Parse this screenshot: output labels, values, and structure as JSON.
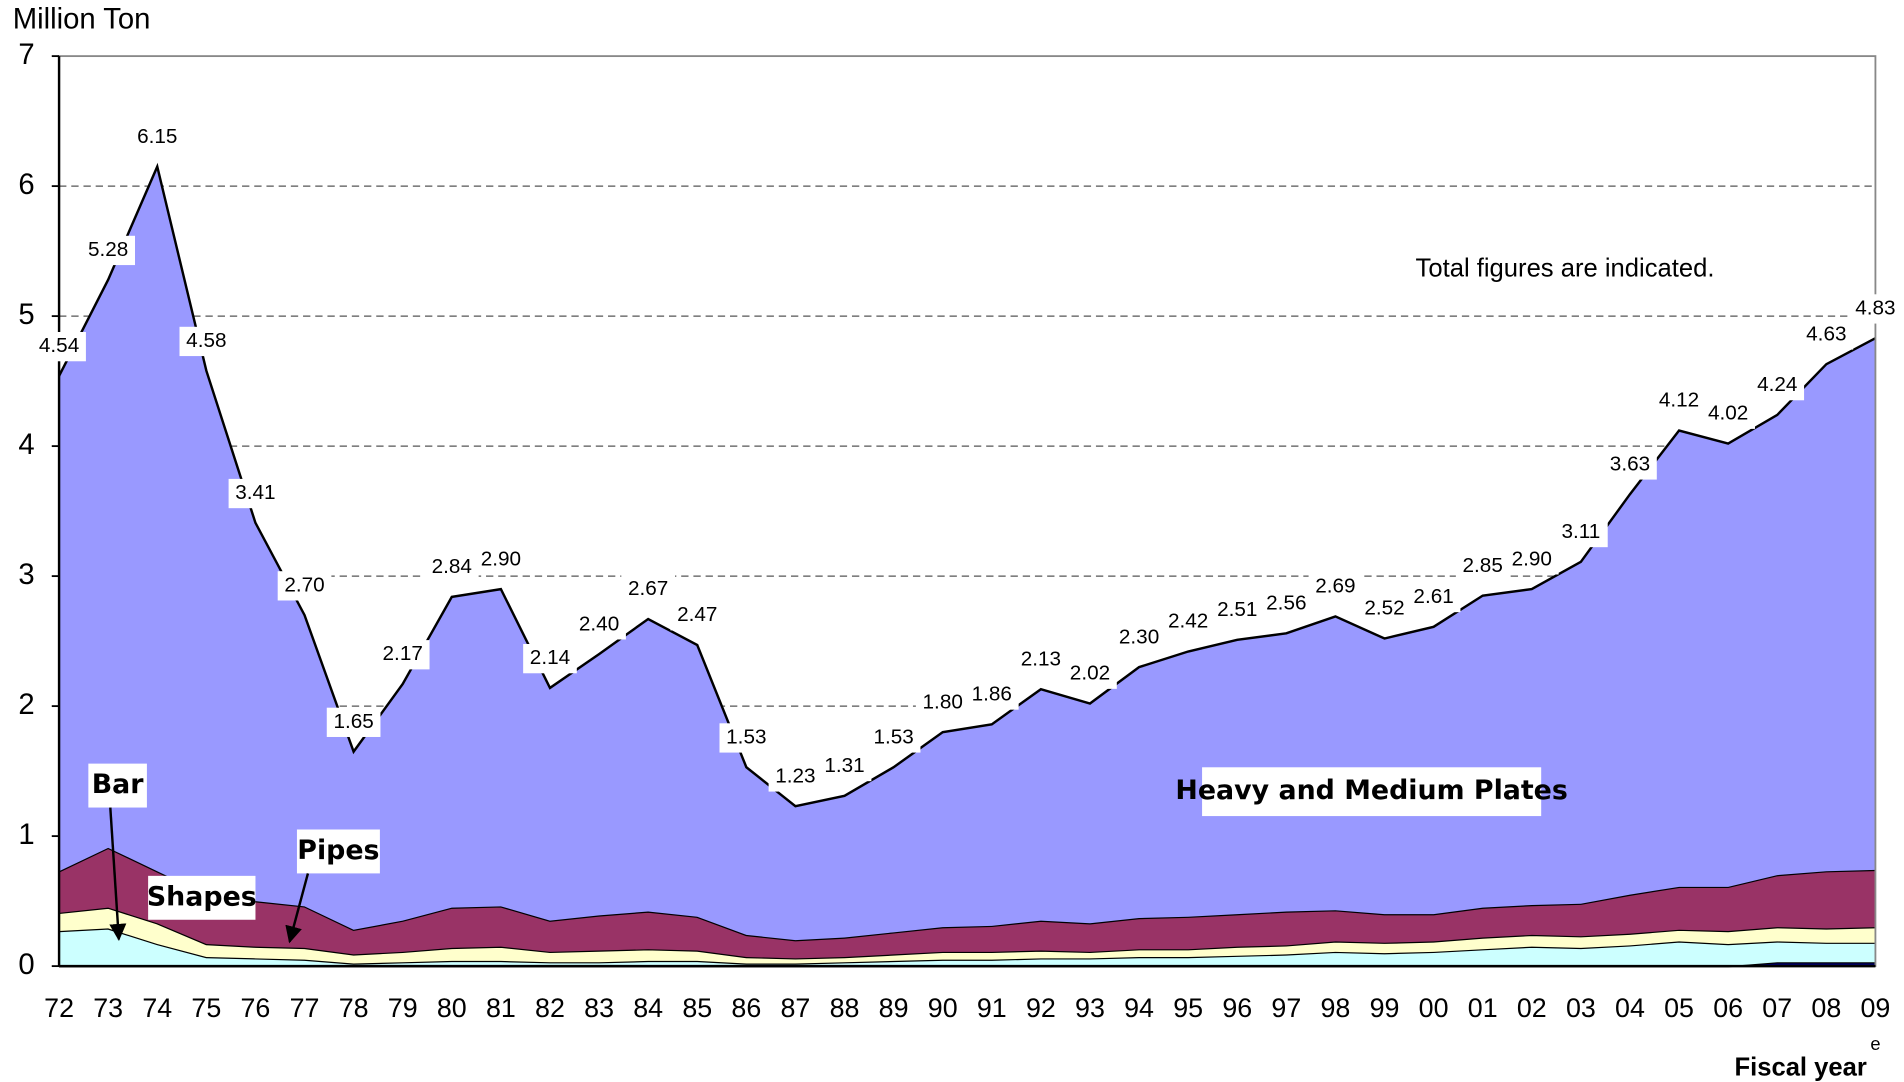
{
  "chart_data": {
    "type": "stacked-area",
    "y_label": "Million Ton",
    "x_label": "Fiscal year",
    "x_note": "e",
    "annotation": "Total figures are indicated.",
    "categories": [
      "72",
      "73",
      "74",
      "75",
      "76",
      "77",
      "78",
      "79",
      "80",
      "81",
      "82",
      "83",
      "84",
      "85",
      "86",
      "87",
      "88",
      "89",
      "90",
      "91",
      "92",
      "93",
      "94",
      "95",
      "96",
      "97",
      "98",
      "99",
      "00",
      "01",
      "02",
      "03",
      "04",
      "05",
      "06",
      "07",
      "08",
      "09"
    ],
    "series": [
      {
        "color": "#000066",
        "values": [
          0,
          0,
          0,
          0,
          0,
          0,
          0,
          0,
          0,
          0,
          0,
          0,
          0,
          0,
          0,
          0,
          0,
          0,
          0,
          0,
          0,
          0,
          0,
          0,
          0,
          0,
          0,
          0,
          0,
          0,
          0,
          0,
          0,
          0,
          0,
          0.03,
          0.03,
          0.03
        ]
      },
      {
        "name": "Bar",
        "color": "#ccffff",
        "values": [
          0.27,
          0.29,
          0.17,
          0.07,
          0.06,
          0.05,
          0.02,
          0.03,
          0.04,
          0.04,
          0.03,
          0.03,
          0.04,
          0.04,
          0.02,
          0.02,
          0.03,
          0.04,
          0.05,
          0.05,
          0.06,
          0.06,
          0.07,
          0.07,
          0.08,
          0.09,
          0.11,
          0.1,
          0.11,
          0.13,
          0.15,
          0.14,
          0.16,
          0.19,
          0.17,
          0.16,
          0.15,
          0.15
        ]
      },
      {
        "name": "Pipes",
        "color": "#ffffcc",
        "values": [
          0.14,
          0.16,
          0.16,
          0.1,
          0.09,
          0.09,
          0.07,
          0.08,
          0.1,
          0.11,
          0.08,
          0.09,
          0.09,
          0.08,
          0.05,
          0.04,
          0.04,
          0.05,
          0.06,
          0.06,
          0.06,
          0.05,
          0.06,
          0.06,
          0.07,
          0.07,
          0.08,
          0.08,
          0.08,
          0.09,
          0.09,
          0.09,
          0.09,
          0.09,
          0.1,
          0.11,
          0.11,
          0.12
        ]
      },
      {
        "name": "Shapes",
        "color": "#993366",
        "values": [
          0.32,
          0.46,
          0.4,
          0.38,
          0.35,
          0.32,
          0.19,
          0.24,
          0.31,
          0.31,
          0.24,
          0.27,
          0.29,
          0.26,
          0.17,
          0.14,
          0.15,
          0.17,
          0.19,
          0.2,
          0.23,
          0.22,
          0.24,
          0.25,
          0.25,
          0.26,
          0.24,
          0.22,
          0.21,
          0.23,
          0.23,
          0.25,
          0.3,
          0.33,
          0.34,
          0.4,
          0.44,
          0.44
        ]
      },
      {
        "name": "Heavy and Medium Plates",
        "color": "#9999ff",
        "values": [
          3.81,
          4.37,
          5.42,
          4.03,
          2.91,
          2.24,
          1.37,
          1.82,
          2.39,
          2.44,
          1.79,
          2.01,
          2.25,
          2.09,
          1.29,
          1.03,
          1.09,
          1.27,
          1.5,
          1.55,
          1.78,
          1.69,
          1.93,
          2.04,
          2.11,
          2.14,
          2.26,
          2.12,
          2.21,
          2.4,
          2.43,
          2.63,
          3.08,
          3.51,
          3.41,
          3.54,
          3.9,
          4.09
        ]
      }
    ],
    "totals": [
      4.54,
      5.28,
      6.15,
      4.58,
      3.41,
      2.7,
      1.65,
      2.17,
      2.84,
      2.9,
      2.14,
      2.4,
      2.67,
      2.47,
      1.53,
      1.23,
      1.31,
      1.53,
      1.8,
      1.86,
      2.13,
      2.02,
      2.3,
      2.42,
      2.51,
      2.56,
      2.69,
      2.52,
      2.61,
      2.85,
      2.9,
      3.11,
      3.63,
      4.12,
      4.02,
      4.24,
      4.63,
      4.83
    ],
    "total_labels": [
      "4.54",
      "5.28",
      "6.15",
      "4.58",
      "3.41",
      "2.70",
      "1.65",
      "2.17",
      "2.84",
      "2.90",
      "2.14",
      "2.40",
      "2.67",
      "2.47",
      "1.53",
      "1.23",
      "1.31",
      "1.53",
      "1.80",
      "1.86",
      "2.13",
      "2.02",
      "2.30",
      "2.42",
      "2.51",
      "2.56",
      "2.69",
      "2.52",
      "2.61",
      "2.85",
      "2.90",
      "3.11",
      "3.63",
      "4.12",
      "4.02",
      "4.24",
      "4.63",
      "4.83"
    ],
    "ylim": [
      0,
      7
    ],
    "yticks": [
      0,
      1,
      2,
      3,
      4,
      5,
      6,
      7
    ],
    "grid": true
  }
}
